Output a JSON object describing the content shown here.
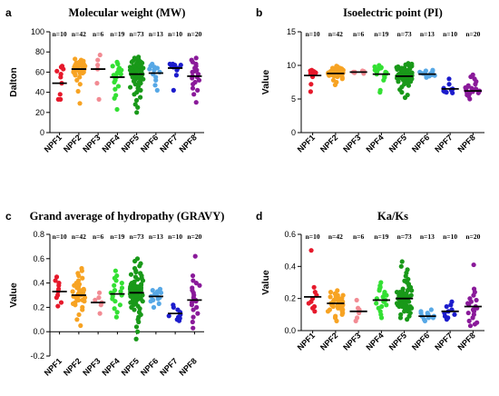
{
  "groups": [
    "NPF1",
    "NPF2",
    "NPF3",
    "NPF4",
    "NPF5",
    "NPF6",
    "NPF7",
    "NPF8"
  ],
  "colors": [
    "#e6192b",
    "#f7a323",
    "#f28b93",
    "#33e033",
    "#199919",
    "#57a8e6",
    "#1c1ccc",
    "#8a1a9a"
  ],
  "chart_data": [
    {
      "type": "scatter",
      "panel": "a",
      "title": "Molecular weight (MW)",
      "ylabel": "Dalton",
      "ylim": [
        0,
        100
      ],
      "yticks": [
        0,
        20,
        40,
        60,
        80,
        100
      ],
      "ytick_labels": [
        "0",
        "20",
        "40",
        "60",
        "80",
        "100"
      ],
      "n_labels": [
        "n=10",
        "n=42",
        "n=6",
        "n=19",
        "n=73",
        "n=13",
        "n=10",
        "n=20"
      ],
      "means": [
        49,
        63,
        63,
        55,
        58,
        59,
        64,
        56
      ],
      "series": [
        {
          "name": "NPF1",
          "values": [
            33,
            33,
            38,
            49,
            55,
            58,
            61,
            63,
            65,
            66
          ]
        },
        {
          "name": "NPF2",
          "values": [
            29,
            41,
            48,
            52,
            55,
            57,
            58,
            59,
            60,
            61,
            61,
            62,
            62,
            62,
            63,
            63,
            63,
            64,
            64,
            64,
            65,
            65,
            65,
            65,
            66,
            66,
            66,
            66,
            67,
            67,
            67,
            68,
            68,
            69,
            70,
            71,
            72,
            73,
            59,
            60,
            61,
            62
          ]
        },
        {
          "name": "NPF3",
          "values": [
            33,
            49,
            63,
            67,
            72,
            77
          ]
        },
        {
          "name": "NPF4",
          "values": [
            23,
            34,
            37,
            43,
            46,
            50,
            52,
            54,
            55,
            57,
            58,
            59,
            60,
            62,
            63,
            64,
            66,
            68,
            70
          ]
        },
        {
          "name": "NPF5",
          "values": [
            20,
            25,
            28,
            32,
            35,
            38,
            40,
            42,
            44,
            45,
            46,
            47,
            48,
            49,
            50,
            51,
            52,
            53,
            54,
            55,
            55,
            56,
            56,
            57,
            57,
            58,
            58,
            59,
            59,
            60,
            60,
            60,
            61,
            61,
            61,
            62,
            62,
            62,
            63,
            63,
            63,
            64,
            64,
            64,
            65,
            65,
            65,
            66,
            66,
            66,
            67,
            67,
            68,
            68,
            69,
            69,
            70,
            70,
            71,
            72,
            73,
            74,
            75,
            52,
            54,
            56,
            58,
            60,
            62,
            64,
            66,
            68,
            70
          ]
        },
        {
          "name": "NPF6",
          "values": [
            42,
            47,
            52,
            55,
            58,
            60,
            62,
            63,
            64,
            65,
            66,
            67,
            68
          ]
        },
        {
          "name": "NPF7",
          "values": [
            42,
            57,
            62,
            64,
            65,
            66,
            67,
            67,
            68,
            68
          ]
        },
        {
          "name": "NPF8",
          "values": [
            30,
            38,
            42,
            44,
            48,
            50,
            52,
            54,
            55,
            56,
            58,
            60,
            61,
            62,
            64,
            66,
            68,
            70,
            72,
            74
          ]
        }
      ]
    },
    {
      "type": "scatter",
      "panel": "b",
      "title": "Isoelectric point (PI)",
      "ylabel": "Value",
      "ylim": [
        0,
        15
      ],
      "yticks": [
        0,
        5,
        10,
        15
      ],
      "ytick_labels": [
        "0",
        "5",
        "10",
        "15"
      ],
      "n_labels": [
        "n=10",
        "n=42",
        "n=6",
        "n=19",
        "n=73",
        "n=13",
        "n=10",
        "n=20"
      ],
      "means": [
        8.5,
        8.8,
        9.0,
        8.7,
        8.4,
        8.7,
        6.5,
        6.2
      ],
      "series": [
        {
          "name": "NPF1",
          "values": [
            6.1,
            7.2,
            8.3,
            8.6,
            8.8,
            8.9,
            9.0,
            9.1,
            9.2,
            9.3
          ]
        },
        {
          "name": "NPF2",
          "values": [
            7.1,
            7.5,
            7.8,
            8.0,
            8.2,
            8.3,
            8.4,
            8.5,
            8.6,
            8.7,
            8.7,
            8.8,
            8.8,
            8.9,
            8.9,
            9.0,
            9.0,
            9.1,
            9.1,
            9.2,
            9.2,
            9.3,
            9.3,
            9.4,
            9.4,
            9.5,
            9.5,
            9.6,
            9.6,
            9.7,
            9.8,
            9.9,
            8.5,
            8.6,
            8.7,
            8.8,
            8.9,
            9.0,
            9.1,
            9.2,
            9.3,
            9.4
          ]
        },
        {
          "name": "NPF3",
          "values": [
            8.8,
            8.9,
            9.0,
            9.0,
            9.1,
            9.2
          ]
        },
        {
          "name": "NPF4",
          "values": [
            6.0,
            6.3,
            7.8,
            8.2,
            8.4,
            8.6,
            8.7,
            8.8,
            8.9,
            9.0,
            9.1,
            9.2,
            9.3,
            9.4,
            9.5,
            9.6,
            9.7,
            9.8,
            10.0
          ]
        },
        {
          "name": "NPF5",
          "values": [
            5.2,
            5.6,
            6.0,
            6.4,
            6.8,
            7.0,
            7.2,
            7.4,
            7.5,
            7.6,
            7.7,
            7.8,
            7.9,
            8.0,
            8.1,
            8.2,
            8.2,
            8.3,
            8.3,
            8.4,
            8.4,
            8.5,
            8.5,
            8.6,
            8.6,
            8.7,
            8.7,
            8.8,
            8.8,
            8.9,
            8.9,
            9.0,
            9.0,
            9.1,
            9.1,
            9.2,
            9.2,
            9.3,
            9.3,
            9.4,
            9.4,
            9.5,
            9.5,
            9.6,
            9.6,
            9.7,
            9.8,
            9.9,
            10.0,
            10.1,
            10.2,
            10.3,
            7.5,
            7.8,
            8.0,
            8.2,
            8.4,
            8.6,
            8.8,
            9.0,
            9.2,
            9.4,
            7.6,
            7.9,
            8.1,
            8.3,
            8.5,
            8.7,
            8.9,
            9.1,
            9.3,
            9.5,
            8.0
          ]
        },
        {
          "name": "NPF6",
          "values": [
            8.2,
            8.4,
            8.5,
            8.6,
            8.7,
            8.7,
            8.8,
            8.8,
            8.9,
            9.0,
            9.1,
            9.2,
            9.3
          ]
        },
        {
          "name": "NPF7",
          "values": [
            5.9,
            6.0,
            6.1,
            6.2,
            6.3,
            6.4,
            6.5,
            6.6,
            7.2,
            8.0
          ]
        },
        {
          "name": "NPF8",
          "values": [
            5.0,
            5.4,
            5.6,
            5.8,
            5.9,
            6.0,
            6.1,
            6.2,
            6.3,
            6.4,
            6.5,
            6.6,
            6.7,
            6.8,
            7.0,
            7.2,
            7.6,
            8.0,
            8.3,
            8.6
          ]
        }
      ]
    },
    {
      "type": "scatter",
      "panel": "c",
      "title": "Grand average of hydropathy (GRAVY)",
      "ylabel": "Value",
      "ylim": [
        -0.2,
        0.8
      ],
      "yticks": [
        -0.2,
        0.0,
        0.2,
        0.4,
        0.6,
        0.8
      ],
      "ytick_labels": [
        "-0.2",
        "0.0",
        "0.2",
        "0.4",
        "0.6",
        "0.8"
      ],
      "n_labels": [
        "n=10",
        "n=42",
        "n=6",
        "n=19",
        "n=73",
        "n=13",
        "n=10",
        "n=20"
      ],
      "means": [
        0.33,
        0.3,
        0.24,
        0.31,
        0.32,
        0.29,
        0.15,
        0.26
      ],
      "series": [
        {
          "name": "NPF1",
          "values": [
            0.21,
            0.24,
            0.28,
            0.3,
            0.33,
            0.35,
            0.38,
            0.4,
            0.42,
            0.45
          ]
        },
        {
          "name": "NPF2",
          "values": [
            0.05,
            0.1,
            0.14,
            0.18,
            0.2,
            0.22,
            0.23,
            0.24,
            0.25,
            0.26,
            0.27,
            0.28,
            0.28,
            0.29,
            0.29,
            0.3,
            0.3,
            0.31,
            0.31,
            0.32,
            0.32,
            0.33,
            0.33,
            0.34,
            0.34,
            0.35,
            0.36,
            0.37,
            0.38,
            0.39,
            0.4,
            0.42,
            0.44,
            0.46,
            0.48,
            0.5,
            0.52,
            0.26,
            0.28,
            0.3,
            0.32,
            0.34
          ]
        },
        {
          "name": "NPF3",
          "values": [
            0.15,
            0.22,
            0.24,
            0.26,
            0.28,
            0.32
          ]
        },
        {
          "name": "NPF4",
          "values": [
            0.12,
            0.16,
            0.19,
            0.22,
            0.25,
            0.27,
            0.29,
            0.3,
            0.31,
            0.32,
            0.33,
            0.34,
            0.36,
            0.38,
            0.4,
            0.42,
            0.44,
            0.46,
            0.5
          ]
        },
        {
          "name": "NPF5",
          "values": [
            -0.06,
            0.0,
            0.04,
            0.08,
            0.1,
            0.12,
            0.14,
            0.16,
            0.18,
            0.19,
            0.2,
            0.21,
            0.22,
            0.23,
            0.24,
            0.25,
            0.26,
            0.27,
            0.27,
            0.28,
            0.28,
            0.29,
            0.29,
            0.3,
            0.3,
            0.31,
            0.31,
            0.32,
            0.32,
            0.33,
            0.33,
            0.34,
            0.34,
            0.35,
            0.35,
            0.36,
            0.36,
            0.37,
            0.37,
            0.38,
            0.38,
            0.39,
            0.4,
            0.41,
            0.42,
            0.43,
            0.44,
            0.45,
            0.46,
            0.47,
            0.48,
            0.49,
            0.5,
            0.52,
            0.54,
            0.56,
            0.58,
            0.6,
            0.25,
            0.27,
            0.29,
            0.31,
            0.33,
            0.35,
            0.37,
            0.39,
            0.26,
            0.28,
            0.3,
            0.32,
            0.34,
            0.36,
            0.38
          ]
        },
        {
          "name": "NPF6",
          "values": [
            0.2,
            0.23,
            0.25,
            0.27,
            0.28,
            0.29,
            0.3,
            0.31,
            0.32,
            0.33,
            0.34,
            0.35,
            0.26
          ]
        },
        {
          "name": "NPF7",
          "values": [
            0.09,
            0.1,
            0.11,
            0.12,
            0.13,
            0.14,
            0.16,
            0.18,
            0.2,
            0.22
          ]
        },
        {
          "name": "NPF8",
          "values": [
            0.03,
            0.08,
            0.12,
            0.15,
            0.18,
            0.2,
            0.22,
            0.24,
            0.25,
            0.26,
            0.28,
            0.3,
            0.32,
            0.34,
            0.36,
            0.38,
            0.4,
            0.42,
            0.46,
            0.62
          ]
        }
      ]
    },
    {
      "type": "scatter",
      "panel": "d",
      "title": "Ka/Ks",
      "ylabel": "Value",
      "ylim": [
        0.0,
        0.6
      ],
      "yticks": [
        0.0,
        0.2,
        0.4,
        0.6
      ],
      "ytick_labels": [
        "0.0",
        "0.2",
        "0.4",
        "0.6"
      ],
      "n_labels": [
        "n=10",
        "n=42",
        "n=6",
        "n=19",
        "n=73",
        "n=13",
        "n=10",
        "n=20"
      ],
      "means": [
        0.21,
        0.17,
        0.12,
        0.19,
        0.2,
        0.09,
        0.12,
        0.15
      ],
      "series": [
        {
          "name": "NPF1",
          "values": [
            0.12,
            0.14,
            0.15,
            0.17,
            0.18,
            0.2,
            0.22,
            0.24,
            0.27,
            0.5
          ]
        },
        {
          "name": "NPF2",
          "values": [
            0.06,
            0.08,
            0.09,
            0.1,
            0.11,
            0.12,
            0.12,
            0.13,
            0.13,
            0.14,
            0.14,
            0.15,
            0.15,
            0.15,
            0.16,
            0.16,
            0.16,
            0.17,
            0.17,
            0.17,
            0.18,
            0.18,
            0.18,
            0.19,
            0.19,
            0.19,
            0.2,
            0.2,
            0.2,
            0.21,
            0.21,
            0.22,
            0.22,
            0.23,
            0.23,
            0.24,
            0.25,
            0.14,
            0.15,
            0.16,
            0.17,
            0.18
          ]
        },
        {
          "name": "NPF3",
          "values": [
            0.06,
            0.08,
            0.11,
            0.13,
            0.14,
            0.19
          ]
        },
        {
          "name": "NPF4",
          "values": [
            0.08,
            0.1,
            0.12,
            0.14,
            0.15,
            0.16,
            0.17,
            0.18,
            0.19,
            0.2,
            0.21,
            0.22,
            0.23,
            0.24,
            0.25,
            0.26,
            0.27,
            0.28,
            0.3
          ]
        },
        {
          "name": "NPF5",
          "values": [
            0.07,
            0.08,
            0.09,
            0.1,
            0.11,
            0.12,
            0.13,
            0.13,
            0.14,
            0.14,
            0.15,
            0.15,
            0.16,
            0.16,
            0.17,
            0.17,
            0.18,
            0.18,
            0.19,
            0.19,
            0.2,
            0.2,
            0.21,
            0.21,
            0.22,
            0.22,
            0.23,
            0.23,
            0.24,
            0.24,
            0.25,
            0.25,
            0.26,
            0.26,
            0.27,
            0.28,
            0.29,
            0.3,
            0.31,
            0.32,
            0.34,
            0.36,
            0.38,
            0.4,
            0.43,
            0.15,
            0.16,
            0.17,
            0.18,
            0.19,
            0.2,
            0.21,
            0.22,
            0.14,
            0.16,
            0.18,
            0.2,
            0.22,
            0.24,
            0.15,
            0.17,
            0.19,
            0.21,
            0.23,
            0.12,
            0.13,
            0.14,
            0.15,
            0.16,
            0.17,
            0.18,
            0.19,
            0.2
          ]
        },
        {
          "name": "NPF6",
          "values": [
            0.06,
            0.07,
            0.08,
            0.08,
            0.09,
            0.09,
            0.09,
            0.1,
            0.1,
            0.11,
            0.11,
            0.12,
            0.13
          ]
        },
        {
          "name": "NPF7",
          "values": [
            0.07,
            0.08,
            0.09,
            0.1,
            0.11,
            0.12,
            0.13,
            0.15,
            0.16,
            0.18
          ]
        },
        {
          "name": "NPF8",
          "values": [
            0.03,
            0.04,
            0.05,
            0.06,
            0.08,
            0.1,
            0.11,
            0.12,
            0.13,
            0.14,
            0.15,
            0.16,
            0.17,
            0.18,
            0.19,
            0.2,
            0.22,
            0.24,
            0.26,
            0.41
          ]
        }
      ]
    }
  ]
}
